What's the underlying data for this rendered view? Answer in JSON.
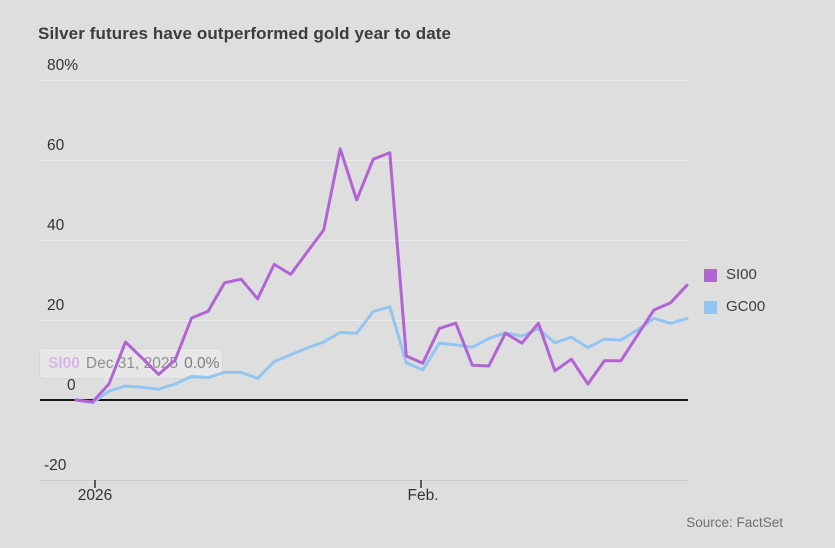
{
  "title": "Silver futures have outperformed gold year to date",
  "source": "Source: FactSet",
  "y_axis": {
    "labels": [
      "80%",
      "60",
      "40",
      "20",
      "0",
      "-20"
    ]
  },
  "x_axis": {
    "labels": [
      "2026",
      "Feb."
    ]
  },
  "legend": [
    {
      "label": "SI00",
      "color": "#b164d4"
    },
    {
      "label": "GC00",
      "color": "#92c5f2"
    }
  ],
  "tooltip": {
    "series": "SI00",
    "series_color": "#d9b7e8",
    "date": "Dec 31, 2025",
    "value": "0.0%"
  },
  "chart_data": {
    "type": "line",
    "title": "Silver futures have outperformed gold year to date",
    "unit": "percent change year to date",
    "ylim": [
      -20,
      80
    ],
    "y_ticks": [
      80,
      60,
      40,
      20,
      0,
      -20
    ],
    "grid": "horizontal",
    "legend_position": "right",
    "x_start_label": "Dec 31, 2025",
    "x_tick_labels": [
      "2026",
      "Feb."
    ],
    "x_tick_point_indices": [
      1,
      21
    ],
    "series": [
      {
        "name": "SI00",
        "color": "#b164d4",
        "values": [
          0,
          -0.5,
          4,
          14.5,
          10.5,
          6.4,
          10,
          20.5,
          22.2,
          29.3,
          30.2,
          25.3,
          33.9,
          31.4,
          37,
          42.5,
          62.8,
          50,
          60.2,
          61.8,
          11,
          9.2,
          17.9,
          19.2,
          8.7,
          8.5,
          16.7,
          14.2,
          19.2,
          7.3,
          10.2,
          4,
          9.8,
          9.8,
          16.2,
          22.5,
          24.3,
          28.7
        ]
      },
      {
        "name": "GC00",
        "color": "#92c5f2",
        "values": [
          0,
          -0.7,
          2.2,
          3.5,
          3.2,
          2.7,
          4,
          5.9,
          5.6,
          6.9,
          6.9,
          5.4,
          9.6,
          11.3,
          13,
          14.5,
          16.9,
          16.7,
          22.1,
          23.3,
          9.3,
          7.5,
          14.2,
          13.8,
          13.2,
          15.4,
          16.8,
          16,
          17.8,
          14.3,
          15.7,
          13.1,
          15.2,
          15,
          17.5,
          20.4,
          19.2,
          20.3
        ]
      }
    ]
  }
}
